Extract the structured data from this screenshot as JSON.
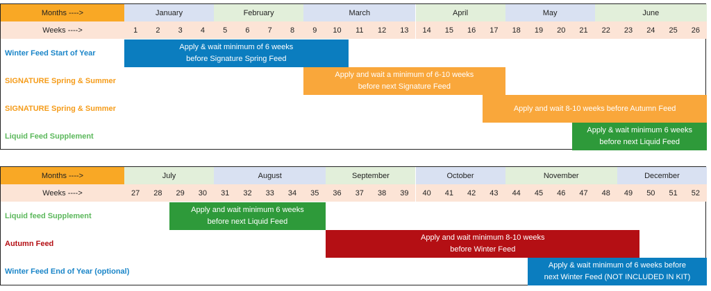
{
  "colors": {
    "header_label_bg": "#f9a825",
    "weeks_row_bg": "#fce4d6",
    "month_colors": [
      "#d9e1f2",
      "#e2efda"
    ],
    "month_colors_2": [
      "#e2efda",
      "#d9e1f2"
    ],
    "blue": "#0b7dbf",
    "orange": "#f9a73b",
    "green": "#2e9a3a",
    "red": "#b40f14",
    "blue_text": "#1a85c8",
    "orange_text": "#f59c1a",
    "green_text": "#5cb85c",
    "red_text": "#b40f14"
  },
  "chart_data": [
    {
      "type": "table",
      "months_label": "Months ---->",
      "weeks_label": "Weeks ---->",
      "months": [
        {
          "name": "January",
          "start": 1,
          "end": 4
        },
        {
          "name": "February",
          "start": 5,
          "end": 8
        },
        {
          "name": "March",
          "start": 9,
          "end": 13
        },
        {
          "name": "April",
          "start": 14,
          "end": 17
        },
        {
          "name": "May",
          "start": 18,
          "end": 21
        },
        {
          "name": "June",
          "start": 22,
          "end": 26
        }
      ],
      "weeks": [
        "1",
        "2",
        "3",
        "4",
        "5",
        "6",
        "7",
        "8",
        "9",
        "10",
        "11",
        "12",
        "13",
        "14",
        "15",
        "16",
        "17",
        "18",
        "19",
        "20",
        "21",
        "22",
        "23",
        "24",
        "25",
        "26"
      ],
      "rows": [
        {
          "label": "Winter Feed Start of Year",
          "color": "blue",
          "bar_start": 1,
          "bar_end": 10,
          "lines": [
            "Apply & wait minimum of 6 weeks",
            "before Signature Spring Feed"
          ]
        },
        {
          "label": "SIGNATURE Spring & Summer",
          "color": "orange",
          "bar_start": 9,
          "bar_end": 17,
          "lines": [
            "Apply and wait a minimum of 6-10 weeks",
            "before next Signature Feed"
          ]
        },
        {
          "label": "SIGNATURE Spring & Summer",
          "color": "orange",
          "bar_start": 17,
          "bar_end": 26,
          "lines": [
            "Apply and wait 8-10 weeks before Autumn Feed"
          ]
        },
        {
          "label": "Liquid Feed Supplement",
          "color": "green",
          "bar_start": 21,
          "bar_end": 26,
          "lines": [
            "Apply & wait minimum 6 weeks",
            "before next Liquid Feed"
          ]
        }
      ]
    },
    {
      "type": "table",
      "months_label": "Months ---->",
      "weeks_label": "Weeks ---->",
      "months": [
        {
          "name": "July",
          "start": 27,
          "end": 30
        },
        {
          "name": "August",
          "start": 31,
          "end": 35
        },
        {
          "name": "September",
          "start": 36,
          "end": 39
        },
        {
          "name": "October",
          "start": 40,
          "end": 43
        },
        {
          "name": "November",
          "start": 44,
          "end": 48
        },
        {
          "name": "December",
          "start": 49,
          "end": 52
        }
      ],
      "weeks": [
        "27",
        "28",
        "29",
        "30",
        "31",
        "32",
        "33",
        "34",
        "35",
        "36",
        "37",
        "38",
        "39",
        "40",
        "41",
        "42",
        "43",
        "44",
        "45",
        "46",
        "47",
        "48",
        "49",
        "50",
        "51",
        "52"
      ],
      "rows": [
        {
          "label": "Liquid feed Supplement",
          "color": "green",
          "bar_start": 29,
          "bar_end": 35,
          "lines": [
            "Apply and wait minimum 6 weeks",
            "before next Liquid Feed"
          ]
        },
        {
          "label": "Autumn Feed",
          "color": "red",
          "bar_start": 36,
          "bar_end": 49,
          "lines": [
            "Apply and wait minimum 8-10 weeks",
            "before Winter Feed"
          ]
        },
        {
          "label": "Winter Feed End of Year (optional)",
          "color": "blue",
          "bar_start": 45,
          "bar_end": 52,
          "lines": [
            "Apply & wait minimum of 6 weeks before",
            "next Winter Feed (NOT INCLUDED IN KIT)"
          ]
        }
      ]
    }
  ]
}
